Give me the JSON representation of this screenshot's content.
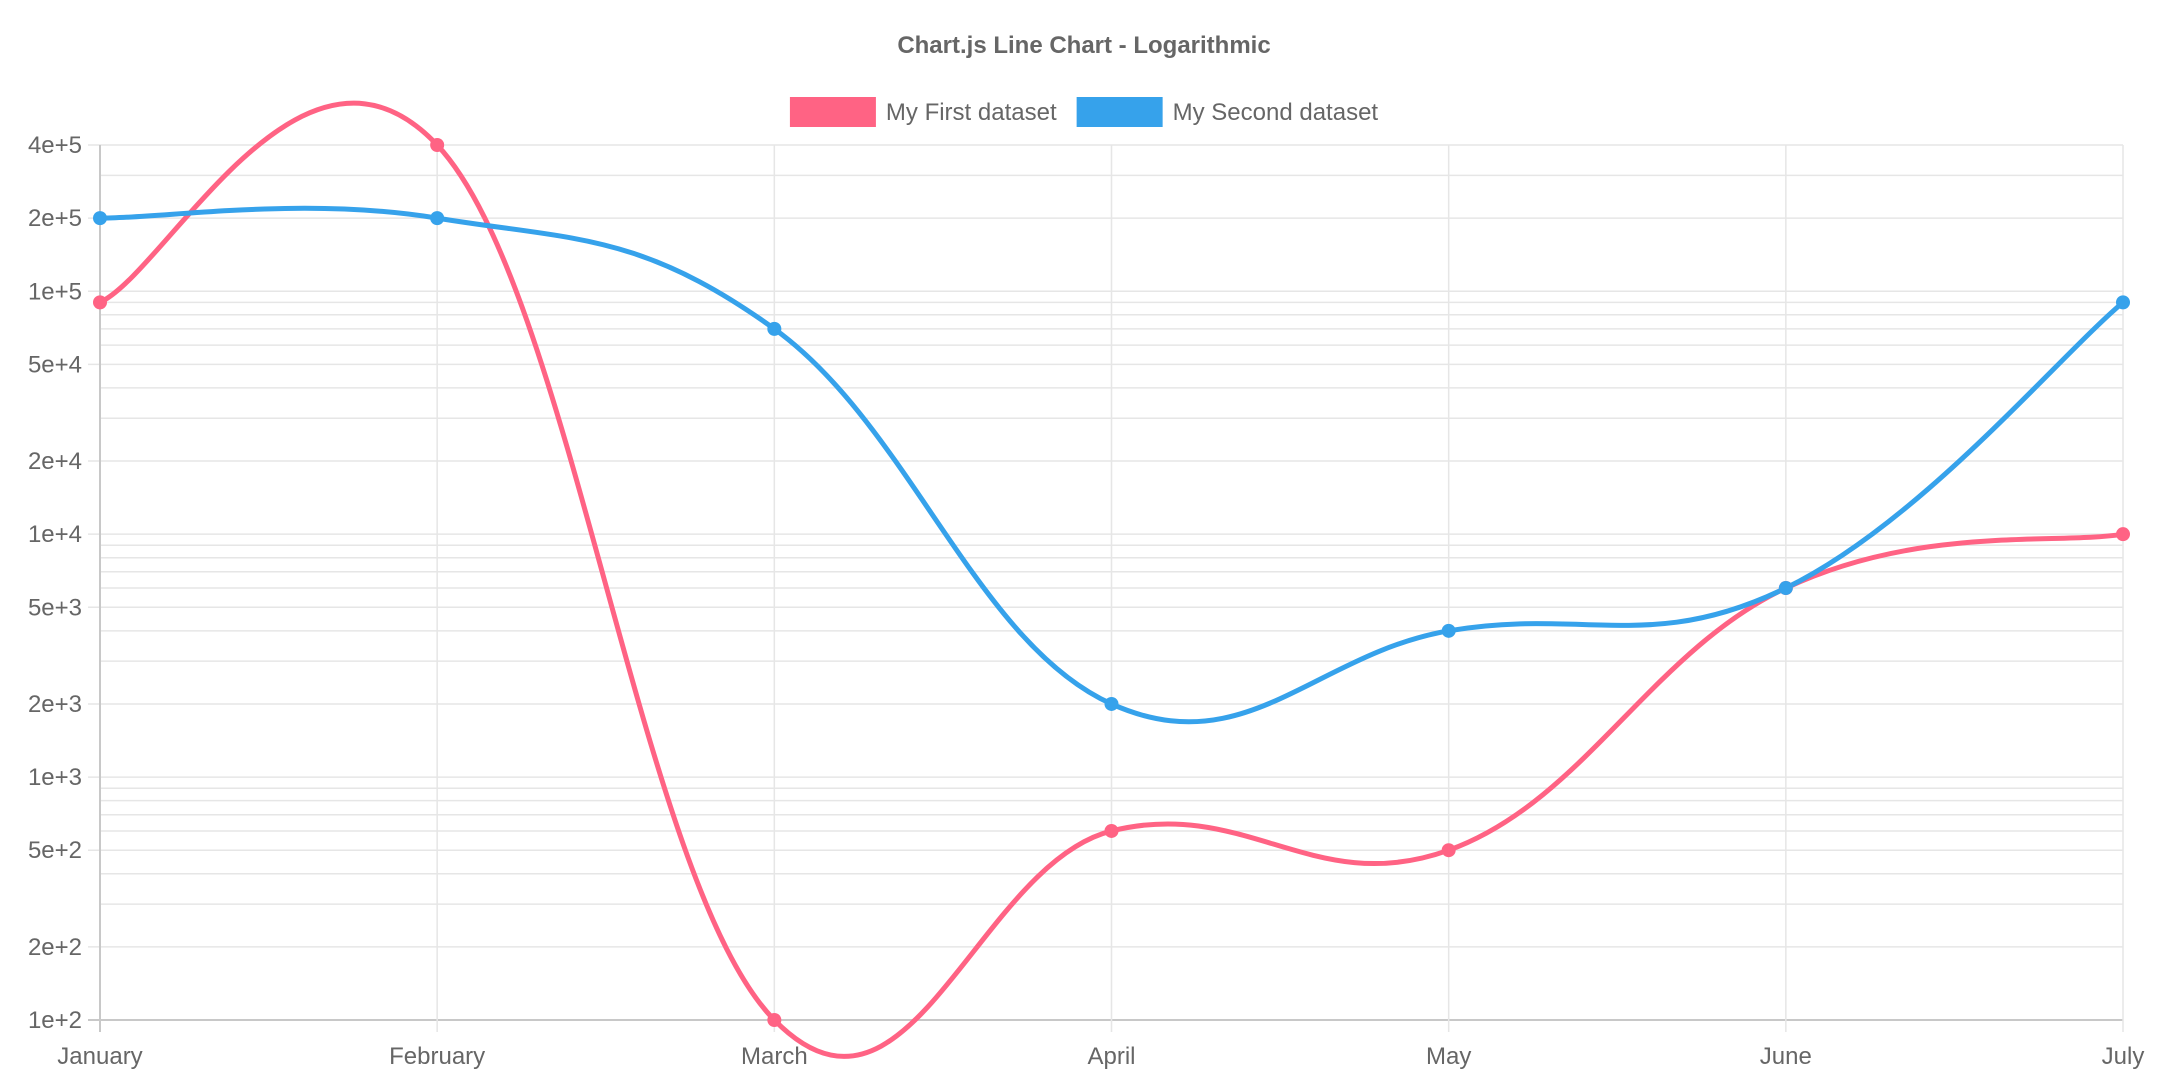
{
  "chart_data": {
    "type": "line",
    "title": "Chart.js Line Chart - Logarithmic",
    "xlabel": "",
    "ylabel": "",
    "y_scale": "log",
    "ylim": [
      100,
      400000
    ],
    "categories": [
      "January",
      "February",
      "March",
      "April",
      "May",
      "June",
      "July"
    ],
    "y_ticks": [
      {
        "value": 100,
        "label": "1e+2"
      },
      {
        "value": 200,
        "label": "2e+2"
      },
      {
        "value": 500,
        "label": "5e+2"
      },
      {
        "value": 1000,
        "label": "1e+3"
      },
      {
        "value": 2000,
        "label": "2e+3"
      },
      {
        "value": 5000,
        "label": "5e+3"
      },
      {
        "value": 10000,
        "label": "1e+4"
      },
      {
        "value": 20000,
        "label": "2e+4"
      },
      {
        "value": 50000,
        "label": "5e+4"
      },
      {
        "value": 100000,
        "label": "1e+5"
      },
      {
        "value": 200000,
        "label": "2e+5"
      },
      {
        "value": 400000,
        "label": "4e+5"
      }
    ],
    "minor_gridlines": [
      300,
      400,
      600,
      700,
      800,
      900,
      3000,
      4000,
      6000,
      7000,
      8000,
      9000,
      30000,
      40000,
      60000,
      70000,
      80000,
      90000,
      300000
    ],
    "legend_position": "top",
    "grid": true,
    "series": [
      {
        "name": "My First dataset",
        "color": "#ff6384",
        "values": [
          90000,
          400000,
          100,
          600,
          500,
          6000,
          10000
        ]
      },
      {
        "name": "My Second dataset",
        "color": "#36a2eb",
        "values": [
          200000,
          200000,
          70000,
          2000,
          4000,
          6000,
          90000
        ]
      }
    ]
  }
}
